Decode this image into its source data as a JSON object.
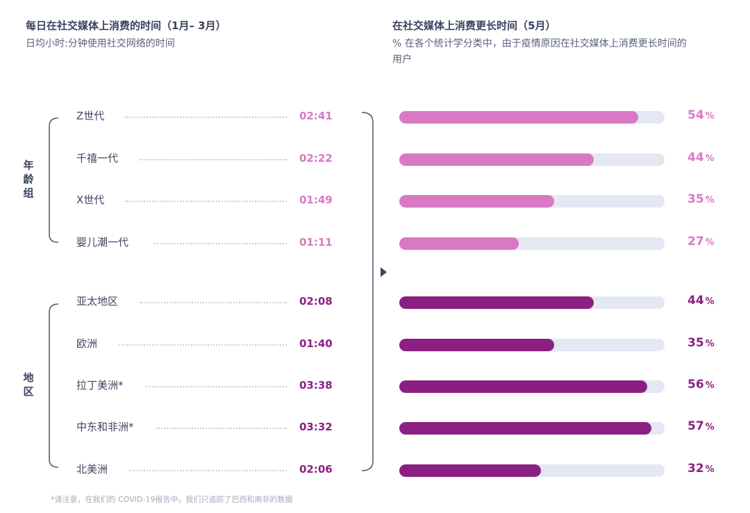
{
  "left_title": "每日在社交媒体上消费的时间（1月– 3月）",
  "left_subtitle": "日均小时:分钟使用社交网络的时间",
  "right_title": "在社交媒体上消费更长时间（5月）",
  "right_subtitle": "% 在各个统计学分类中，由于疫情原因在社交媒体上消费更长时间的用户",
  "age_group_label": "年龄组",
  "region_group_label": "地区",
  "percent_sign": "%",
  "footnote": "*请注意，在我们的 COVID-19报告中，我们只追踪了巴西和南非的数据",
  "colors": {
    "age": "#d978c4",
    "region": "#8b2082",
    "track": "#e3e8f3"
  },
  "chart_data": {
    "type": "bar",
    "categories": [
      "Z世代",
      "千禧一代",
      "X世代",
      "婴儿潮一代",
      "亚太地区",
      "欧洲",
      "拉丁美洲*",
      "中东和非洲*",
      "北美洲"
    ],
    "times": [
      "02:41",
      "02:22",
      "01:49",
      "01:11",
      "02:08",
      "01:40",
      "03:38",
      "03:32",
      "02:06"
    ],
    "values": [
      54,
      44,
      35,
      27,
      44,
      35,
      56,
      57,
      32
    ],
    "groups": [
      "age",
      "age",
      "age",
      "age",
      "region",
      "region",
      "region",
      "region",
      "region"
    ],
    "xlim": [
      0,
      60
    ]
  }
}
